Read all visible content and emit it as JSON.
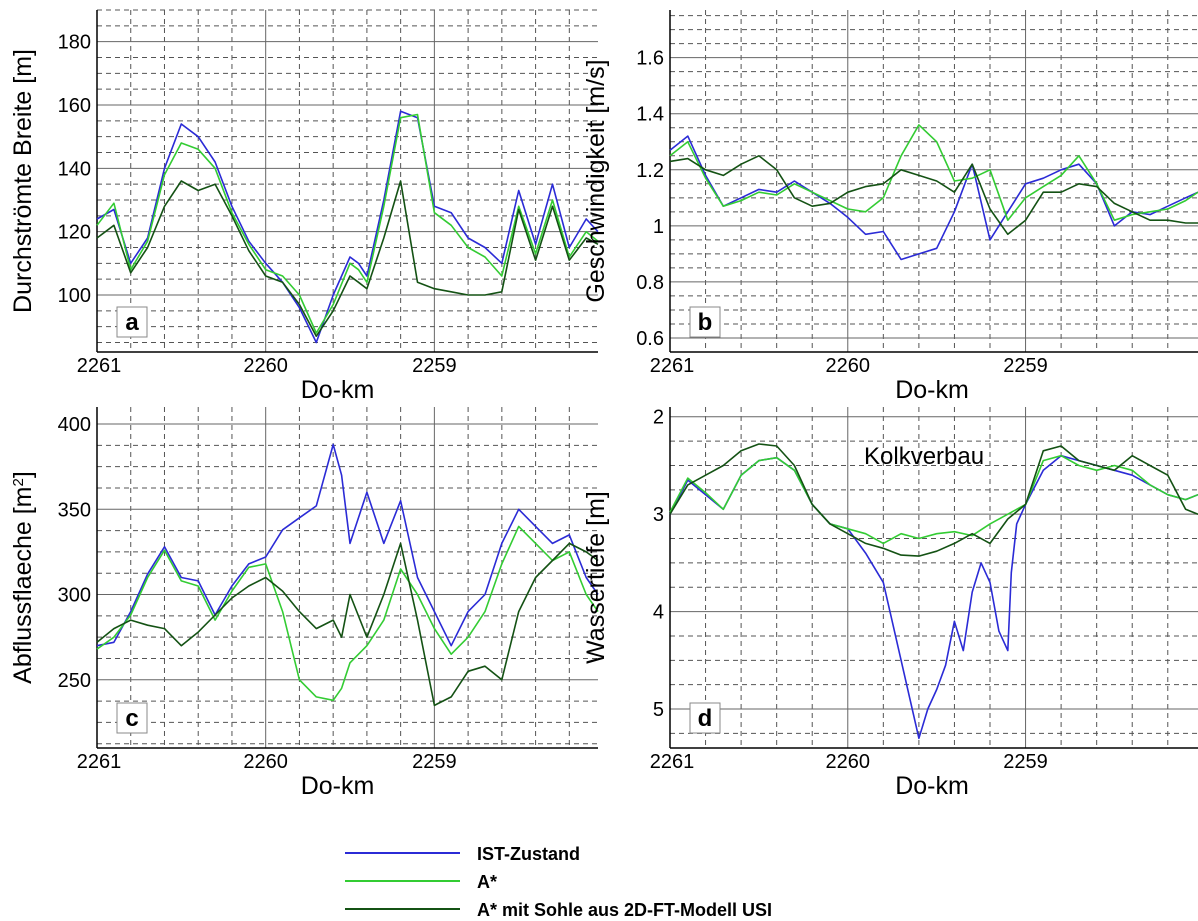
{
  "chart_data": [
    {
      "id": "a",
      "type": "line",
      "panel_label": "a",
      "xlabel": "Do-km",
      "ylabel": "Durchströmte Breite [m]",
      "x_reversed": true,
      "xlim": [
        2261,
        2258.03
      ],
      "ylim": [
        82,
        190
      ],
      "xticks": [
        2261,
        2260,
        2259
      ],
      "xtick_labels": [
        "2261",
        "2260",
        "2259"
      ],
      "yticks": [
        100,
        120,
        140,
        160,
        180
      ],
      "ytick_labels": [
        "100",
        "120",
        "140",
        "160",
        "180"
      ],
      "grid": true,
      "series": [
        {
          "name": "IST-Zustand",
          "color": "#2b2bd6",
          "x": [
            2261,
            2260.9,
            2260.8,
            2260.7,
            2260.6,
            2260.5,
            2260.4,
            2260.3,
            2260.2,
            2260.1,
            2260,
            2259.9,
            2259.8,
            2259.7,
            2259.6,
            2259.5,
            2259.45,
            2259.4,
            2259.3,
            2259.2,
            2259.1,
            2259,
            2258.9,
            2258.8,
            2258.7,
            2258.6,
            2258.5,
            2258.4,
            2258.3,
            2258.2,
            2258.1,
            2258.03
          ],
          "y": [
            124,
            127,
            110,
            118,
            140,
            154,
            150,
            142,
            128,
            117,
            110,
            104,
            96,
            85,
            100,
            112,
            110,
            106,
            130,
            158,
            156,
            128,
            126,
            118,
            115,
            110,
            133,
            116,
            135,
            115,
            124,
            120
          ]
        },
        {
          "name": "A*",
          "color": "#33cc33",
          "x": [
            2261,
            2260.9,
            2260.8,
            2260.7,
            2260.6,
            2260.5,
            2260.4,
            2260.3,
            2260.2,
            2260.1,
            2260,
            2259.9,
            2259.8,
            2259.7,
            2259.6,
            2259.5,
            2259.45,
            2259.4,
            2259.3,
            2259.2,
            2259.1,
            2259,
            2258.9,
            2258.8,
            2258.7,
            2258.6,
            2258.5,
            2258.4,
            2258.3,
            2258.2,
            2258.1,
            2258.03
          ],
          "y": [
            122,
            129,
            108,
            117,
            138,
            148,
            146,
            140,
            126,
            116,
            108,
            106,
            100,
            88,
            97,
            110,
            108,
            104,
            128,
            156,
            157,
            126,
            122,
            115,
            112,
            106,
            128,
            113,
            130,
            112,
            120,
            117
          ]
        },
        {
          "name": "A* mit Sohle aus 2D-FT-Modell USI",
          "color": "#145214",
          "x": [
            2261,
            2260.9,
            2260.8,
            2260.7,
            2260.6,
            2260.5,
            2260.4,
            2260.3,
            2260.2,
            2260.1,
            2260,
            2259.9,
            2259.8,
            2259.7,
            2259.6,
            2259.5,
            2259.45,
            2259.4,
            2259.3,
            2259.2,
            2259.1,
            2259,
            2258.9,
            2258.8,
            2258.7,
            2258.6,
            2258.5,
            2258.4,
            2258.3,
            2258.2,
            2258.1,
            2258.03
          ],
          "y": [
            118,
            122,
            107,
            115,
            128,
            136,
            133,
            135,
            125,
            114,
            106,
            104,
            97,
            87,
            95,
            106,
            104,
            102,
            118,
            136,
            104,
            102,
            101,
            100,
            100,
            101,
            127,
            111,
            128,
            111,
            118,
            116
          ]
        }
      ]
    },
    {
      "id": "b",
      "type": "line",
      "panel_label": "b",
      "xlabel": "Do-km",
      "ylabel": "Geschwindigkeit [m/s]",
      "x_reversed": true,
      "xlim": [
        2261,
        2258.03
      ],
      "ylim": [
        0.55,
        1.77
      ],
      "xticks": [
        2261,
        2260,
        2259
      ],
      "xtick_labels": [
        "2261",
        "2260",
        "2259"
      ],
      "yticks": [
        0.6,
        0.8,
        1,
        1.2,
        1.4,
        1.6
      ],
      "ytick_labels": [
        "0.6",
        "0.8",
        "1",
        "1.2",
        "1.4",
        "1.6"
      ],
      "grid": true,
      "series": [
        {
          "name": "IST-Zustand",
          "color": "#2b2bd6",
          "x": [
            2261,
            2260.9,
            2260.8,
            2260.7,
            2260.6,
            2260.5,
            2260.4,
            2260.3,
            2260.2,
            2260.1,
            2260,
            2259.9,
            2259.8,
            2259.7,
            2259.6,
            2259.5,
            2259.4,
            2259.3,
            2259.2,
            2259.1,
            2259,
            2258.9,
            2258.8,
            2258.7,
            2258.6,
            2258.5,
            2258.4,
            2258.3,
            2258.2,
            2258.1,
            2258.03
          ],
          "y": [
            1.27,
            1.32,
            1.18,
            1.07,
            1.1,
            1.13,
            1.12,
            1.16,
            1.12,
            1.08,
            1.03,
            0.97,
            0.98,
            0.88,
            0.9,
            0.92,
            1.05,
            1.22,
            0.95,
            1.05,
            1.15,
            1.17,
            1.2,
            1.22,
            1.15,
            1.0,
            1.05,
            1.04,
            1.07,
            1.1,
            1.12
          ]
        },
        {
          "name": "A*",
          "color": "#33cc33",
          "x": [
            2261,
            2260.9,
            2260.8,
            2260.7,
            2260.6,
            2260.5,
            2260.4,
            2260.3,
            2260.2,
            2260.1,
            2260,
            2259.9,
            2259.8,
            2259.7,
            2259.6,
            2259.5,
            2259.4,
            2259.3,
            2259.2,
            2259.1,
            2259,
            2258.9,
            2258.8,
            2258.7,
            2258.6,
            2258.5,
            2258.4,
            2258.3,
            2258.2,
            2258.1,
            2258.03
          ],
          "y": [
            1.25,
            1.3,
            1.17,
            1.07,
            1.09,
            1.12,
            1.11,
            1.15,
            1.12,
            1.09,
            1.06,
            1.05,
            1.1,
            1.25,
            1.36,
            1.3,
            1.16,
            1.17,
            1.2,
            1.02,
            1.1,
            1.14,
            1.18,
            1.25,
            1.15,
            1.02,
            1.04,
            1.05,
            1.06,
            1.09,
            1.12
          ]
        },
        {
          "name": "A* mit Sohle aus 2D-FT-Modell USI",
          "color": "#145214",
          "x": [
            2261,
            2260.9,
            2260.8,
            2260.7,
            2260.6,
            2260.5,
            2260.4,
            2260.3,
            2260.2,
            2260.1,
            2260,
            2259.9,
            2259.8,
            2259.7,
            2259.6,
            2259.5,
            2259.4,
            2259.3,
            2259.2,
            2259.1,
            2259,
            2258.9,
            2258.8,
            2258.7,
            2258.6,
            2258.5,
            2258.4,
            2258.3,
            2258.2,
            2258.1,
            2258.03
          ],
          "y": [
            1.23,
            1.24,
            1.2,
            1.18,
            1.22,
            1.25,
            1.2,
            1.1,
            1.07,
            1.08,
            1.12,
            1.14,
            1.15,
            1.2,
            1.18,
            1.16,
            1.12,
            1.22,
            1.06,
            0.97,
            1.02,
            1.12,
            1.12,
            1.15,
            1.14,
            1.08,
            1.05,
            1.02,
            1.02,
            1.01,
            1.01
          ]
        }
      ]
    },
    {
      "id": "c",
      "type": "line",
      "panel_label": "c",
      "xlabel": "Do-km",
      "ylabel": "Abflussflaeche [m",
      "ylabel_sup": "2",
      "ylabel_end": "]",
      "x_reversed": true,
      "xlim": [
        2261,
        2258.03
      ],
      "ylim": [
        210,
        410
      ],
      "xticks": [
        2261,
        2260,
        2259
      ],
      "xtick_labels": [
        "2261",
        "2260",
        "2259"
      ],
      "yticks": [
        250,
        300,
        350,
        400
      ],
      "ytick_labels": [
        "250",
        "300",
        "350",
        "400"
      ],
      "grid": true,
      "series": [
        {
          "name": "IST-Zustand",
          "color": "#2b2bd6",
          "x": [
            2261,
            2260.9,
            2260.8,
            2260.7,
            2260.6,
            2260.5,
            2260.4,
            2260.3,
            2260.2,
            2260.1,
            2260,
            2259.9,
            2259.8,
            2259.7,
            2259.6,
            2259.55,
            2259.5,
            2259.4,
            2259.3,
            2259.2,
            2259.1,
            2259,
            2258.9,
            2258.8,
            2258.7,
            2258.6,
            2258.5,
            2258.4,
            2258.3,
            2258.2,
            2258.1,
            2258.03
          ],
          "y": [
            270,
            272,
            290,
            312,
            328,
            310,
            308,
            288,
            305,
            318,
            322,
            338,
            345,
            352,
            388,
            370,
            330,
            360,
            330,
            355,
            310,
            290,
            270,
            290,
            300,
            330,
            350,
            340,
            330,
            335,
            310,
            300
          ]
        },
        {
          "name": "A*",
          "color": "#33cc33",
          "x": [
            2261,
            2260.9,
            2260.8,
            2260.7,
            2260.6,
            2260.5,
            2260.4,
            2260.3,
            2260.2,
            2260.1,
            2260,
            2259.9,
            2259.8,
            2259.7,
            2259.6,
            2259.55,
            2259.5,
            2259.4,
            2259.3,
            2259.2,
            2259.1,
            2259,
            2258.9,
            2258.8,
            2258.7,
            2258.6,
            2258.5,
            2258.4,
            2258.3,
            2258.2,
            2258.1,
            2258.03
          ],
          "y": [
            268,
            275,
            288,
            310,
            326,
            308,
            305,
            285,
            302,
            316,
            318,
            290,
            250,
            240,
            238,
            245,
            260,
            270,
            285,
            315,
            300,
            280,
            265,
            275,
            290,
            318,
            340,
            330,
            320,
            325,
            300,
            290
          ]
        },
        {
          "name": "A* mit Sohle aus 2D-FT-Modell USI",
          "color": "#145214",
          "x": [
            2261,
            2260.9,
            2260.8,
            2260.7,
            2260.6,
            2260.5,
            2260.4,
            2260.3,
            2260.2,
            2260.1,
            2260,
            2259.9,
            2259.8,
            2259.7,
            2259.6,
            2259.55,
            2259.5,
            2259.4,
            2259.3,
            2259.2,
            2259.1,
            2259,
            2258.9,
            2258.8,
            2258.7,
            2258.6,
            2258.5,
            2258.4,
            2258.3,
            2258.2,
            2258.1,
            2258.03
          ],
          "y": [
            272,
            280,
            285,
            282,
            280,
            270,
            278,
            288,
            298,
            305,
            310,
            302,
            290,
            280,
            285,
            275,
            300,
            275,
            300,
            330,
            285,
            235,
            240,
            255,
            258,
            250,
            290,
            310,
            320,
            330,
            325,
            320
          ]
        }
      ]
    },
    {
      "id": "d",
      "type": "line",
      "panel_label": "d",
      "annotation": "Kolkverbau",
      "xlabel": "Do-km",
      "ylabel": "Wassertiefe [m]",
      "x_reversed": true,
      "y_reversed": true,
      "xlim": [
        2261,
        2258.03
      ],
      "ylim": [
        5.4,
        1.9
      ],
      "xticks": [
        2261,
        2260,
        2259
      ],
      "xtick_labels": [
        "2261",
        "2260",
        "2259"
      ],
      "yticks": [
        2,
        3,
        4,
        5
      ],
      "ytick_labels": [
        "2",
        "3",
        "4",
        "5"
      ],
      "grid": true,
      "series": [
        {
          "name": "IST-Zustand",
          "color": "#2b2bd6",
          "x": [
            2261,
            2260.9,
            2260.8,
            2260.7,
            2260.6,
            2260.5,
            2260.4,
            2260.3,
            2260.2,
            2260.1,
            2260,
            2259.9,
            2259.8,
            2259.7,
            2259.6,
            2259.55,
            2259.5,
            2259.45,
            2259.4,
            2259.35,
            2259.3,
            2259.25,
            2259.2,
            2259.15,
            2259.1,
            2259.08,
            2259.05,
            2259,
            2258.9,
            2258.8,
            2258.7,
            2258.6,
            2258.5,
            2258.4,
            2258.3,
            2258.2,
            2258.1,
            2258.03
          ],
          "y": [
            3.0,
            2.65,
            2.8,
            2.95,
            2.6,
            2.45,
            2.42,
            2.55,
            2.9,
            3.1,
            3.15,
            3.4,
            3.7,
            4.5,
            5.3,
            5.0,
            4.8,
            4.55,
            4.1,
            4.4,
            3.8,
            3.5,
            3.7,
            4.2,
            4.4,
            3.6,
            3.1,
            2.9,
            2.55,
            2.4,
            2.45,
            2.5,
            2.55,
            2.6,
            2.7,
            2.8,
            2.85,
            2.8
          ]
        },
        {
          "name": "A*",
          "color": "#33cc33",
          "x": [
            2261,
            2260.9,
            2260.8,
            2260.7,
            2260.6,
            2260.5,
            2260.4,
            2260.3,
            2260.2,
            2260.1,
            2260,
            2259.9,
            2259.8,
            2259.7,
            2259.6,
            2259.5,
            2259.4,
            2259.3,
            2259.2,
            2259.1,
            2259,
            2258.9,
            2258.8,
            2258.7,
            2258.6,
            2258.5,
            2258.4,
            2258.3,
            2258.2,
            2258.1,
            2258.03
          ],
          "y": [
            2.98,
            2.63,
            2.78,
            2.95,
            2.6,
            2.45,
            2.42,
            2.55,
            2.9,
            3.1,
            3.15,
            3.2,
            3.3,
            3.2,
            3.25,
            3.2,
            3.18,
            3.22,
            3.1,
            3.0,
            2.9,
            2.45,
            2.4,
            2.5,
            2.55,
            2.5,
            2.55,
            2.7,
            2.8,
            2.85,
            2.8
          ]
        },
        {
          "name": "A* mit Sohle aus 2D-FT-Modell USI",
          "color": "#145214",
          "x": [
            2261,
            2260.9,
            2260.8,
            2260.7,
            2260.6,
            2260.5,
            2260.4,
            2260.3,
            2260.2,
            2260.1,
            2260,
            2259.9,
            2259.8,
            2259.7,
            2259.6,
            2259.5,
            2259.4,
            2259.3,
            2259.2,
            2259.1,
            2259,
            2258.9,
            2258.8,
            2258.7,
            2258.6,
            2258.5,
            2258.4,
            2258.3,
            2258.2,
            2258.1,
            2258.03
          ],
          "y": [
            3.0,
            2.7,
            2.6,
            2.5,
            2.35,
            2.28,
            2.3,
            2.5,
            2.9,
            3.1,
            3.2,
            3.3,
            3.35,
            3.42,
            3.43,
            3.38,
            3.3,
            3.2,
            3.3,
            3.05,
            2.9,
            2.35,
            2.3,
            2.45,
            2.5,
            2.55,
            2.4,
            2.5,
            2.6,
            2.95,
            3.0
          ]
        }
      ]
    }
  ],
  "legend": {
    "placement": "bottom-center",
    "items": [
      {
        "label": "IST-Zustand",
        "color": "#2b2bd6"
      },
      {
        "label": "A*",
        "color": "#33cc33"
      },
      {
        "label": "A* mit Sohle aus 2D-FT-Modell USI",
        "color": "#145214"
      }
    ]
  }
}
